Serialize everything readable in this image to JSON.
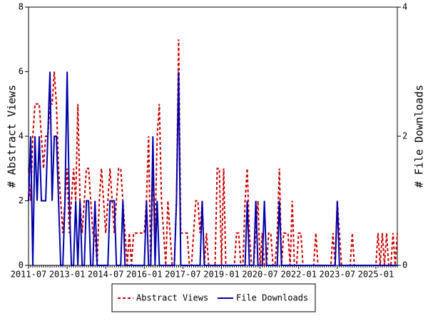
{
  "chart_data": {
    "type": "line",
    "y_label": "# Abstract Views",
    "y2_label": "# File Downloads",
    "categories": [
      "2011-07",
      null,
      null,
      null,
      null,
      null,
      null,
      null,
      null,
      null,
      null,
      null,
      null,
      null,
      null,
      null,
      null,
      null,
      "2013-01",
      null,
      null,
      null,
      null,
      null,
      null,
      null,
      null,
      null,
      null,
      null,
      null,
      null,
      null,
      null,
      null,
      null,
      "2014-07",
      null,
      null,
      null,
      null,
      null,
      null,
      null,
      null,
      null,
      null,
      null,
      null,
      null,
      null,
      null,
      null,
      null,
      "2016-01",
      null,
      null,
      null,
      null,
      null,
      null,
      null,
      null,
      null,
      null,
      null,
      null,
      null,
      null,
      null,
      null,
      null,
      "2017-07",
      null,
      null,
      null,
      null,
      null,
      null,
      null,
      null,
      null,
      null,
      null,
      null,
      null,
      null,
      null,
      null,
      null,
      "2019-01",
      null,
      null,
      null,
      null,
      null,
      null,
      null,
      null,
      null,
      null,
      null,
      null,
      null,
      null,
      null,
      null,
      null,
      "2020-07",
      null,
      null,
      null,
      null,
      null,
      null,
      null,
      null,
      null,
      null,
      null,
      null,
      null,
      null,
      null,
      null,
      null,
      "2022-01",
      null,
      null,
      null,
      null,
      null,
      null,
      null,
      null,
      null,
      null,
      null,
      null,
      null,
      null,
      null,
      null,
      null,
      "2023-07",
      null,
      null,
      null,
      null,
      null,
      null,
      null,
      null,
      null,
      null,
      null,
      null,
      null,
      null,
      null,
      null,
      null,
      "2025-01",
      null,
      null,
      null,
      null,
      null,
      null,
      null,
      null,
      null,
      null
    ],
    "series": [
      {
        "name": "Abstract Views",
        "color": "#cc0000",
        "dash": true,
        "axis": "y",
        "values": [
          3,
          2,
          4,
          5,
          5,
          5,
          4,
          3,
          4,
          4,
          5,
          5,
          6,
          5,
          3,
          2,
          1,
          2,
          3,
          1,
          2,
          3,
          2,
          5,
          2,
          1,
          2,
          3,
          3,
          2,
          1,
          1,
          0,
          2,
          3,
          2,
          1,
          2,
          3,
          2,
          1,
          2,
          3,
          3,
          2,
          1,
          0,
          1,
          0,
          1,
          1,
          1,
          1,
          1,
          1,
          2,
          4,
          0,
          3,
          1,
          4,
          5,
          2,
          1,
          0,
          2,
          1,
          0,
          0,
          2,
          7,
          1,
          1,
          1,
          1,
          0,
          0,
          1,
          2,
          2,
          1,
          2,
          0,
          1,
          0,
          0,
          0,
          0,
          3,
          3,
          0,
          3,
          0,
          0,
          0,
          0,
          0,
          1,
          1,
          0,
          0,
          2,
          3,
          1,
          0,
          0,
          1,
          2,
          0,
          1,
          0,
          0,
          1,
          1,
          0,
          0,
          1,
          3,
          0,
          1,
          1,
          1,
          0,
          2,
          0,
          0,
          1,
          1,
          0,
          0,
          0,
          0,
          0,
          0,
          1,
          0,
          0,
          0,
          0,
          0,
          0,
          0,
          1,
          0,
          2,
          1,
          0,
          0,
          0,
          0,
          0,
          1,
          0,
          0,
          0,
          0,
          0,
          0,
          0,
          0,
          0,
          0,
          0,
          1,
          0,
          1,
          0,
          1,
          0,
          0,
          1,
          0,
          1
        ]
      },
      {
        "name": "File Downloads",
        "color": "#0000aa",
        "dash": false,
        "axis": "y2",
        "values": [
          1,
          2,
          0,
          2,
          1,
          2,
          1,
          1,
          1,
          2,
          3,
          1,
          2,
          2,
          1,
          0,
          0,
          1,
          3,
          1,
          0,
          0,
          1,
          0,
          1,
          0,
          0,
          1,
          1,
          0,
          0,
          1,
          0,
          0,
          0,
          0,
          0,
          0,
          1,
          1,
          1,
          0,
          0,
          0,
          1,
          0,
          0,
          0,
          0,
          0,
          0,
          0,
          0,
          0,
          0,
          1,
          0,
          0,
          2,
          0,
          1,
          0,
          0,
          0,
          0,
          0,
          0,
          0,
          0,
          1,
          3,
          0,
          0,
          0,
          0,
          0,
          0,
          0,
          0,
          0,
          0,
          1,
          0,
          0,
          0,
          0,
          0,
          0,
          0,
          0,
          0,
          0,
          0,
          0,
          0,
          0,
          0,
          0,
          0,
          0,
          0,
          0,
          1,
          0,
          0,
          0,
          1,
          0,
          0,
          0,
          1,
          0,
          0,
          0,
          0,
          0,
          0,
          1,
          0,
          0,
          0,
          0,
          0,
          0,
          0,
          0,
          0,
          0,
          0,
          0,
          0,
          0,
          0,
          0,
          0,
          0,
          0,
          0,
          0,
          0,
          0,
          0,
          0,
          0,
          1,
          0,
          0,
          0,
          0,
          0,
          0,
          0,
          0,
          0,
          0,
          0,
          0,
          0,
          0,
          0,
          0,
          0,
          0,
          0,
          0,
          0,
          0,
          0,
          0,
          0,
          0,
          0,
          0
        ]
      }
    ],
    "ylim": [
      0,
      8
    ],
    "yticks": [
      0,
      2,
      4,
      6,
      8
    ],
    "y2lim": [
      0,
      4
    ],
    "y2ticks": [
      0,
      2,
      4
    ],
    "legend": "bottom"
  }
}
